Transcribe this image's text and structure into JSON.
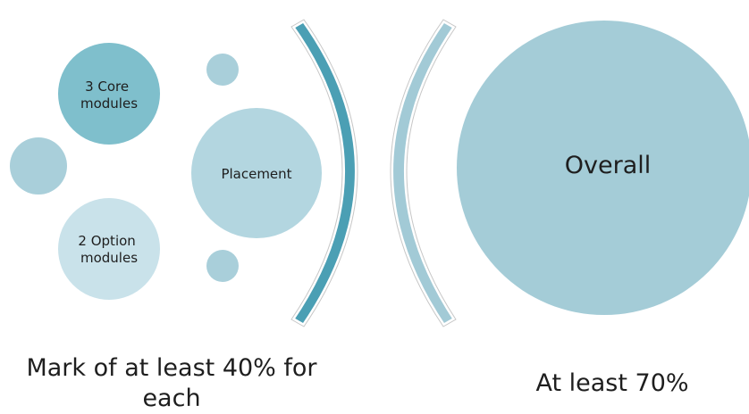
{
  "diagram": {
    "nodes": {
      "core": "3 Core modules",
      "placement": "Placement",
      "option": "2 Option modules",
      "overall": "Overall"
    },
    "captions": {
      "left": "Mark of at least 40% for each",
      "right": "At least 70%"
    },
    "colors": {
      "core_circle": "#7fbfcc",
      "placement_circle": "#b3d6e0",
      "option_circle": "#c9e2ea",
      "small_circle": "#a9cfda",
      "overall_circle": "#a4ccd7",
      "left_bracket": "#4b9fb4",
      "right_bracket": "#a2cad6",
      "bracket_outline": "#ffffff"
    }
  }
}
